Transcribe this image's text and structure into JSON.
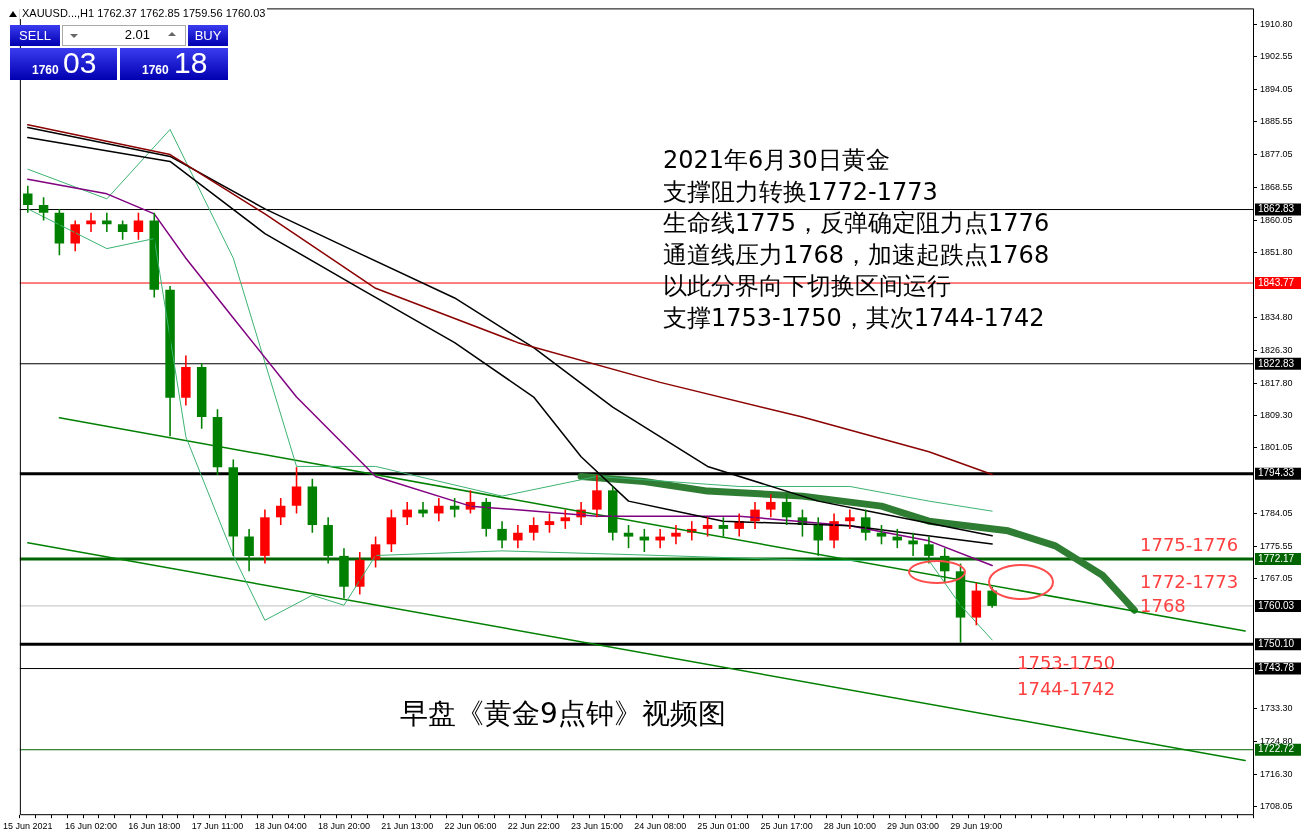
{
  "chart_data": {
    "type": "candlestick",
    "title": "XAUUSD...,H1  1762.37 1762.85 1759.56 1760.03",
    "categories": [
      "15 Jun 2021",
      null,
      null,
      null,
      "16 Jun 02:00",
      null,
      null,
      null,
      "16 Jun 18:00",
      null,
      null,
      null,
      "17 Jun 11:00",
      null,
      null,
      null,
      "18 Jun 04:00",
      null,
      null,
      null,
      "18 Jun 20:00",
      null,
      null,
      null,
      "21 Jun 13:00",
      null,
      null,
      null,
      "22 Jun 06:00",
      null,
      null,
      null,
      "22 Jun 22:00",
      null,
      null,
      null,
      "23 Jun 15:00",
      null,
      null,
      null,
      "24 Jun 08:00",
      null,
      null,
      null,
      "25 Jun 01:00",
      null,
      null,
      null,
      "25 Jun 17:00",
      null,
      null,
      null,
      "28 Jun 10:00",
      null,
      null,
      null,
      "29 Jun 03:00",
      null,
      null,
      null,
      "29 Jun 19:00",
      null,
      null,
      null,
      null,
      null,
      null,
      null,
      null,
      null,
      null,
      null,
      null,
      null,
      null,
      null,
      null,
      null
    ],
    "ohlc": [
      [
        1867,
        1869,
        1862,
        1864
      ],
      [
        1864,
        1866,
        1860,
        1862
      ],
      [
        1862,
        1863,
        1851,
        1854
      ],
      [
        1854,
        1860,
        1852,
        1859
      ],
      [
        1859,
        1862,
        1857,
        1860
      ],
      [
        1860,
        1862,
        1857,
        1859
      ],
      [
        1859,
        1860,
        1855,
        1857
      ],
      [
        1857,
        1862,
        1855,
        1860
      ],
      [
        1860,
        1862,
        1840,
        1842
      ],
      [
        1842,
        1843,
        1804,
        1814
      ],
      [
        1814,
        1825,
        1812,
        1822
      ],
      [
        1822,
        1823,
        1806,
        1809
      ],
      [
        1809,
        1811,
        1794,
        1796
      ],
      [
        1796,
        1798,
        1773,
        1778
      ],
      [
        1778,
        1780,
        1769,
        1773
      ],
      [
        1773,
        1785,
        1771,
        1783
      ],
      [
        1783,
        1788,
        1781,
        1786
      ],
      [
        1786,
        1796,
        1784,
        1791
      ],
      [
        1791,
        1793,
        1779,
        1781
      ],
      [
        1781,
        1783,
        1771,
        1773
      ],
      [
        1773,
        1775,
        1762,
        1765
      ],
      [
        1765,
        1774,
        1763,
        1772
      ],
      [
        1772,
        1778,
        1770,
        1776
      ],
      [
        1776,
        1785,
        1774,
        1783
      ],
      [
        1783,
        1787,
        1781,
        1785
      ],
      [
        1785,
        1787,
        1783,
        1784
      ],
      [
        1784,
        1788,
        1782,
        1786
      ],
      [
        1786,
        1788,
        1783,
        1785
      ],
      [
        1785,
        1790,
        1784,
        1787
      ],
      [
        1787,
        1788,
        1778,
        1780
      ],
      [
        1780,
        1782,
        1775,
        1777
      ],
      [
        1777,
        1781,
        1775,
        1779
      ],
      [
        1779,
        1783,
        1777,
        1781
      ],
      [
        1781,
        1784,
        1779,
        1782
      ],
      [
        1782,
        1785,
        1780,
        1783
      ],
      [
        1783,
        1787,
        1781,
        1785
      ],
      [
        1785,
        1794,
        1783,
        1790
      ],
      [
        1790,
        1791,
        1777,
        1779
      ],
      [
        1779,
        1781,
        1775,
        1778
      ],
      [
        1778,
        1780,
        1774,
        1777
      ],
      [
        1777,
        1780,
        1775,
        1778
      ],
      [
        1778,
        1781,
        1776,
        1779
      ],
      [
        1779,
        1782,
        1777,
        1780
      ],
      [
        1780,
        1783,
        1778,
        1781
      ],
      [
        1781,
        1783,
        1778,
        1780
      ],
      [
        1780,
        1784,
        1778,
        1782
      ],
      [
        1782,
        1787,
        1780,
        1785
      ],
      [
        1785,
        1789,
        1783,
        1787
      ],
      [
        1787,
        1789,
        1781,
        1783
      ],
      [
        1783,
        1785,
        1778,
        1781
      ],
      [
        1781,
        1783,
        1773,
        1777
      ],
      [
        1777,
        1784,
        1775,
        1782
      ],
      [
        1782,
        1785,
        1780,
        1783
      ],
      [
        1783,
        1785,
        1777,
        1779
      ],
      [
        1779,
        1781,
        1776,
        1778
      ],
      [
        1778,
        1780,
        1775,
        1777
      ],
      [
        1777,
        1779,
        1773,
        1776
      ],
      [
        1776,
        1778,
        1771,
        1773
      ],
      [
        1773,
        1775,
        1766,
        1769
      ],
      [
        1769,
        1771,
        1750.5,
        1757
      ],
      [
        1757,
        1766,
        1755,
        1764
      ],
      [
        1764,
        1765,
        1759.56,
        1760.03
      ],
      null,
      null,
      null,
      null,
      null,
      null,
      null,
      null,
      null,
      null,
      null,
      null,
      null,
      null,
      null,
      null
    ],
    "colors": [
      "#008000",
      "#008000",
      "#008000",
      "#ff0000",
      "#ff0000",
      "#008000",
      "#008000",
      "#ff0000",
      "#008000",
      "#008000",
      "#ff0000",
      "#008000",
      "#008000",
      "#008000",
      "#008000",
      "#ff0000",
      "#ff0000",
      "#ff0000",
      "#008000",
      "#008000",
      "#008000",
      "#ff0000",
      "#ff0000",
      "#ff0000",
      "#ff0000",
      "#008000",
      "#ff0000",
      "#008000",
      "#ff0000",
      "#008000",
      "#008000",
      "#ff0000",
      "#ff0000",
      "#ff0000",
      "#ff0000",
      "#ff0000",
      "#ff0000",
      "#008000",
      "#008000",
      "#008000",
      "#ff0000",
      "#ff0000",
      "#ff0000",
      "#ff0000",
      "#008000",
      "#ff0000",
      "#ff0000",
      "#ff0000",
      "#008000",
      "#008000",
      "#008000",
      "#ff0000",
      "#ff0000",
      "#008000",
      "#008000",
      "#008000",
      "#008000",
      "#008000",
      "#008000",
      "#008000",
      "#ff0000",
      "#008000",
      null,
      null,
      null,
      null,
      null,
      null,
      null,
      null,
      null,
      null,
      null,
      null,
      null,
      null,
      null,
      null
    ],
    "series": [
      {
        "type": "line",
        "color": "#8b0000",
        "values": [
          1884.8,
          null,
          null,
          null,
          null,
          null,
          null,
          null,
          null,
          1877.1,
          null,
          null,
          null,
          null,
          null,
          1861.7,
          null,
          null,
          null,
          null,
          null,
          null,
          1842.4,
          null,
          null,
          null,
          null,
          null,
          null,
          null,
          null,
          1828.3,
          null,
          null,
          null,
          null,
          null,
          null,
          null,
          null,
          1818.0,
          null,
          null,
          null,
          null,
          null,
          null,
          null,
          null,
          1809.0,
          null,
          null,
          null,
          null,
          null,
          null,
          null,
          1800.0,
          null,
          null,
          null,
          1794.1,
          null,
          null,
          null,
          null,
          null,
          null,
          null,
          null,
          null,
          null,
          null,
          null,
          null,
          null,
          null,
          null
        ]
      },
      {
        "type": "line",
        "color": "#000000",
        "values": [
          1884.1,
          null,
          null,
          null,
          null,
          null,
          null,
          null,
          null,
          1876.6,
          null,
          null,
          null,
          null,
          null,
          1863.0,
          null,
          null,
          null,
          null,
          null,
          1851.4,
          null,
          null,
          null,
          null,
          null,
          1839.9,
          null,
          null,
          null,
          null,
          1827.0,
          null,
          null,
          null,
          null,
          1811.6,
          null,
          null,
          null,
          null,
          null,
          1796.2,
          null,
          null,
          null,
          null,
          null,
          null,
          1787.2,
          null,
          null,
          null,
          null,
          null,
          null,
          null,
          null,
          null,
          null,
          1778.2,
          null,
          null,
          null,
          null,
          null,
          null,
          null,
          null,
          null,
          null,
          null,
          null,
          null,
          null,
          null,
          null
        ]
      },
      {
        "type": "line",
        "color": "#000000",
        "values": [
          1881.5,
          null,
          null,
          null,
          null,
          null,
          null,
          null,
          null,
          1875.3,
          null,
          null,
          null,
          null,
          null,
          1856.6,
          null,
          null,
          null,
          null,
          null,
          1842.4,
          null,
          null,
          null,
          null,
          null,
          1828.3,
          null,
          null,
          null,
          null,
          1814.2,
          null,
          null,
          1798.7,
          null,
          null,
          1787.2,
          null,
          null,
          null,
          null,
          null,
          1782.0,
          null,
          null,
          null,
          null,
          null,
          null,
          null,
          1780.8,
          null,
          null,
          null,
          null,
          null,
          null,
          null,
          null,
          1776.1,
          null,
          null,
          null,
          null,
          null,
          null,
          null,
          null,
          null,
          null,
          null,
          null,
          null,
          null,
          null,
          null
        ]
      },
      {
        "type": "line",
        "color": "#800080",
        "values": [
          1870.7,
          null,
          null,
          null,
          null,
          1866.9,
          null,
          null,
          1861.7,
          null,
          1850.2,
          null,
          null,
          1834.7,
          null,
          null,
          null,
          1814.2,
          null,
          null,
          null,
          null,
          1793.6,
          null,
          null,
          null,
          null,
          null,
          1785.9,
          null,
          null,
          null,
          null,
          null,
          null,
          null,
          1783.3,
          null,
          null,
          null,
          null,
          null,
          null,
          null,
          null,
          1783.3,
          null,
          null,
          null,
          null,
          null,
          null,
          1780.8,
          null,
          null,
          null,
          null,
          1776.9,
          null,
          null,
          null,
          1770.5,
          null,
          null,
          null,
          null,
          null,
          null,
          null,
          null,
          null,
          null,
          null,
          null,
          null,
          null,
          null,
          null
        ]
      },
      {
        "type": "line",
        "color": "#3cb371",
        "values": [
          1873.3,
          null,
          null,
          null,
          null,
          1865.6,
          null,
          null,
          null,
          1883.6,
          null,
          null,
          null,
          1850.2,
          null,
          null,
          null,
          1796.2,
          null,
          null,
          null,
          null,
          1796.2,
          null,
          null,
          null,
          null,
          null,
          null,
          null,
          1788.5,
          null,
          null,
          null,
          null,
          null,
          1793.6,
          null,
          null,
          null,
          null,
          null,
          null,
          null,
          null,
          1791.0,
          null,
          null,
          null,
          null,
          null,
          null,
          1791.0,
          null,
          null,
          null,
          null,
          1787.2,
          null,
          null,
          null,
          1784.6,
          null,
          null,
          null,
          null,
          null,
          null,
          null,
          null,
          null,
          null,
          null,
          null,
          null,
          null,
          null,
          null
        ]
      },
      {
        "type": "line",
        "color": "#3cb371",
        "values": [
          1863.0,
          null,
          null,
          null,
          null,
          1852.7,
          null,
          null,
          1855.3,
          null,
          1803.9,
          null,
          null,
          1773.1,
          null,
          1756.3,
          null,
          null,
          1762.8,
          null,
          1760.2,
          null,
          1773.1,
          null,
          null,
          null,
          null,
          null,
          null,
          null,
          1774.3,
          null,
          null,
          null,
          null,
          null,
          null,
          null,
          null,
          null,
          1773.1,
          null,
          null,
          null,
          null,
          null,
          null,
          null,
          null,
          null,
          1771.8,
          null,
          null,
          null,
          null,
          null,
          null,
          1771.8,
          null,
          1760.2,
          null,
          1751.2,
          null,
          null,
          null,
          null,
          null,
          null,
          null,
          null,
          null,
          null,
          null,
          null,
          null,
          null,
          null,
          null
        ]
      },
      {
        "type": "line",
        "color": "#008000",
        "values": [
          null,
          null,
          1808.8,
          null,
          null,
          null,
          null,
          null,
          null,
          null,
          null,
          null,
          null,
          null,
          null,
          null,
          null,
          null,
          null,
          null,
          null,
          null,
          null,
          null,
          null,
          null,
          null,
          null,
          null,
          null,
          null,
          null,
          null,
          null,
          null,
          null,
          null,
          null,
          null,
          null,
          null,
          null,
          null,
          null,
          null,
          null,
          null,
          null,
          null,
          null,
          null,
          null,
          null,
          null,
          null,
          null,
          null,
          null,
          null,
          null,
          null,
          null,
          null,
          null,
          null,
          null,
          null,
          null,
          null,
          null,
          null,
          null,
          null,
          null,
          null,
          null,
          null,
          1753.5
        ]
      },
      {
        "type": "line",
        "color": "#008000",
        "values": [
          1776.4,
          null,
          null,
          null,
          null,
          null,
          null,
          null,
          null,
          null,
          null,
          null,
          null,
          null,
          null,
          null,
          null,
          null,
          null,
          null,
          null,
          null,
          null,
          null,
          null,
          null,
          null,
          null,
          null,
          null,
          null,
          null,
          null,
          null,
          null,
          null,
          null,
          null,
          null,
          null,
          null,
          null,
          null,
          null,
          null,
          null,
          null,
          null,
          null,
          null,
          null,
          null,
          null,
          null,
          null,
          null,
          null,
          null,
          null,
          null,
          null,
          null,
          null,
          null,
          null,
          null,
          null,
          null,
          null,
          null,
          null,
          null,
          null,
          null,
          null,
          null,
          null,
          1719.9
        ]
      },
      {
        "type": "line",
        "color": "#2e7d32",
        "values": [
          null,
          null,
          null,
          null,
          null,
          null,
          null,
          null,
          null,
          null,
          null,
          null,
          null,
          null,
          null,
          null,
          null,
          null,
          null,
          null,
          null,
          null,
          null,
          null,
          null,
          null,
          null,
          null,
          null,
          null,
          null,
          null,
          null,
          null,
          null,
          1793.6,
          null,
          null,
          null,
          1792.3,
          null,
          null,
          null,
          1789.8,
          null,
          null,
          null,
          null,
          null,
          1788.5,
          null,
          null,
          null,
          null,
          1785.9,
          null,
          null,
          1782.0,
          null,
          null,
          null,
          null,
          1779.5,
          null,
          null,
          1775.6,
          null,
          null,
          1767.9,
          null,
          1758.9,
          null,
          null,
          null,
          null,
          null,
          null,
          null
        ]
      }
    ],
    "ylim": [
      1706,
      1915
    ],
    "yticks": [
      {
        "value": 1910.8,
        "label": "1910.80"
      },
      {
        "value": 1902.55,
        "label": "1902.55"
      },
      {
        "value": 1894.05,
        "label": "1894.05"
      },
      {
        "value": 1885.55,
        "label": "1885.55"
      },
      {
        "value": 1877.05,
        "label": "1877.05"
      },
      {
        "value": 1868.55,
        "label": "1868.55"
      },
      {
        "value": 1860.05,
        "label": "1860.05"
      },
      {
        "value": 1851.8,
        "label": "1851.80"
      },
      {
        "value": 1834.8,
        "label": "1834.80"
      },
      {
        "value": 1826.3,
        "label": "1826.30"
      },
      {
        "value": 1817.8,
        "label": "1817.80"
      },
      {
        "value": 1809.3,
        "label": "1809.30"
      },
      {
        "value": 1801.05,
        "label": "1801.05"
      },
      {
        "value": 1784.05,
        "label": "1784.05"
      },
      {
        "value": 1775.55,
        "label": "1775.55"
      },
      {
        "value": 1767.05,
        "label": "1767.05"
      },
      {
        "value": 1733.3,
        "label": "1733.30"
      },
      {
        "value": 1724.8,
        "label": "1724.80"
      },
      {
        "value": 1716.3,
        "label": "1716.30"
      },
      {
        "value": 1708.05,
        "label": "1708.05"
      }
    ],
    "ref_lines": [
      {
        "axis": "y",
        "value": 1862.83,
        "label": "1862.83",
        "color": "#000000"
      },
      {
        "axis": "y",
        "value": 1843.77,
        "label": "1843.77",
        "color": "#ff0000"
      },
      {
        "axis": "y",
        "value": 1822.83,
        "label": "1822.83",
        "color": "#000000"
      },
      {
        "axis": "y",
        "value": 1794.33,
        "label": "1794.33",
        "color": "#000000"
      },
      {
        "axis": "y",
        "value": 1772.17,
        "label": "1772.17",
        "color": "#006400"
      },
      {
        "axis": "y",
        "value": 1760.03,
        "label": "1760.03",
        "color": "#c0c0c0"
      },
      {
        "axis": "y",
        "value": 1750.1,
        "label": "1750.10",
        "color": "#000000"
      },
      {
        "axis": "y",
        "value": 1743.78,
        "label": "1743.78",
        "color": "#000000"
      },
      {
        "axis": "y",
        "value": 1722.72,
        "label": "1722.72",
        "color": "#006400"
      }
    ],
    "annotations": [
      "SELL",
      "2.01",
      "BUY",
      "1760",
      "03",
      "1760",
      "18",
      "2021年6月30日黄金",
      "支撑阻力转换1772-1773",
      "生命线1775，反弹确定阻力点1776",
      "通道线压力1768，加速起跌点1768",
      "以此分界向下切换区间运行",
      "支撑1753-1750，其次1744-1742",
      "早盘《黄金9点钟》视频图",
      "1775-1776",
      "1772-1773",
      "1768",
      "1753-1750",
      "1744-1742"
    ]
  }
}
